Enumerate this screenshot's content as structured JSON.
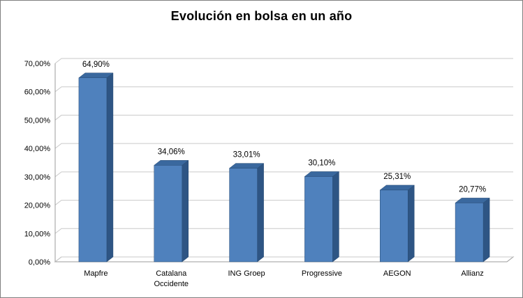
{
  "chart_data": {
    "type": "bar",
    "style": "3d-bar",
    "title": "Evolución en bolsa en un año",
    "categories": [
      "Mapfre",
      "Catalana Occidente",
      "ING Groep",
      "Progressive",
      "AEGON",
      "Allianz"
    ],
    "values": [
      64.9,
      34.06,
      33.01,
      30.1,
      25.31,
      20.77
    ],
    "value_labels": [
      "64,90%",
      "34,06%",
      "33,01%",
      "30,10%",
      "25,31%",
      "20,77%"
    ],
    "y_ticks": [
      "0,00%",
      "10,00%",
      "20,00%",
      "30,00%",
      "40,00%",
      "50,00%",
      "60,00%",
      "70,00%"
    ],
    "y_tick_values": [
      0,
      10,
      20,
      30,
      40,
      50,
      60,
      70
    ],
    "ylim": [
      0,
      70
    ],
    "xlabel": "",
    "ylabel": "",
    "grid": true,
    "legend": false,
    "colors": {
      "bar_front": "#4f81bd",
      "bar_top": "#3a689e",
      "bar_side": "#2e5584",
      "bar_outline": "#264a73",
      "gridline": "#c9c9c9",
      "axis": "#9b9b9b",
      "label": "#000000",
      "background": "#ffffff",
      "border": "#7f7f7f"
    }
  }
}
